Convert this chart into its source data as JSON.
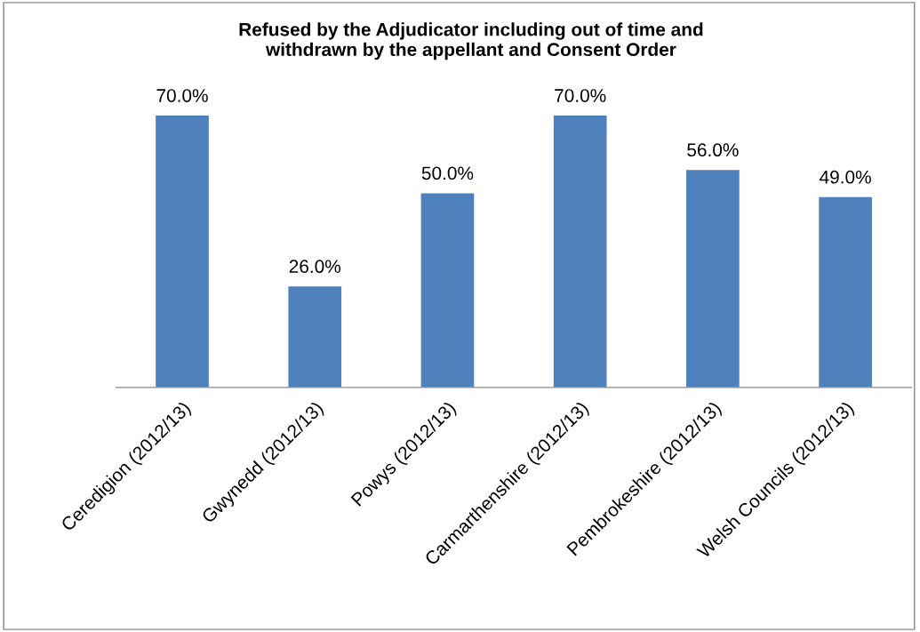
{
  "chart_data": {
    "type": "bar",
    "title": "Refused by the Adjudicator including out of time and\nwithdrawn by the appellant and Consent Order",
    "categories": [
      "Ceredigion (2012/13)",
      "Gwynedd (2012/13)",
      "Powys (2012/13)",
      "Carmarthenshire (2012/13)",
      "Pembrokeshire (2012/13)",
      "Welsh Councils (2012/13)"
    ],
    "values": [
      70.0,
      26.0,
      50.0,
      70.0,
      56.0,
      49.0
    ],
    "value_labels": [
      "70.0%",
      "26.0%",
      "50.0%",
      "70.0%",
      "56.0%",
      "49.0%"
    ],
    "color": "#4f81bd",
    "grid": false,
    "legend": false
  }
}
